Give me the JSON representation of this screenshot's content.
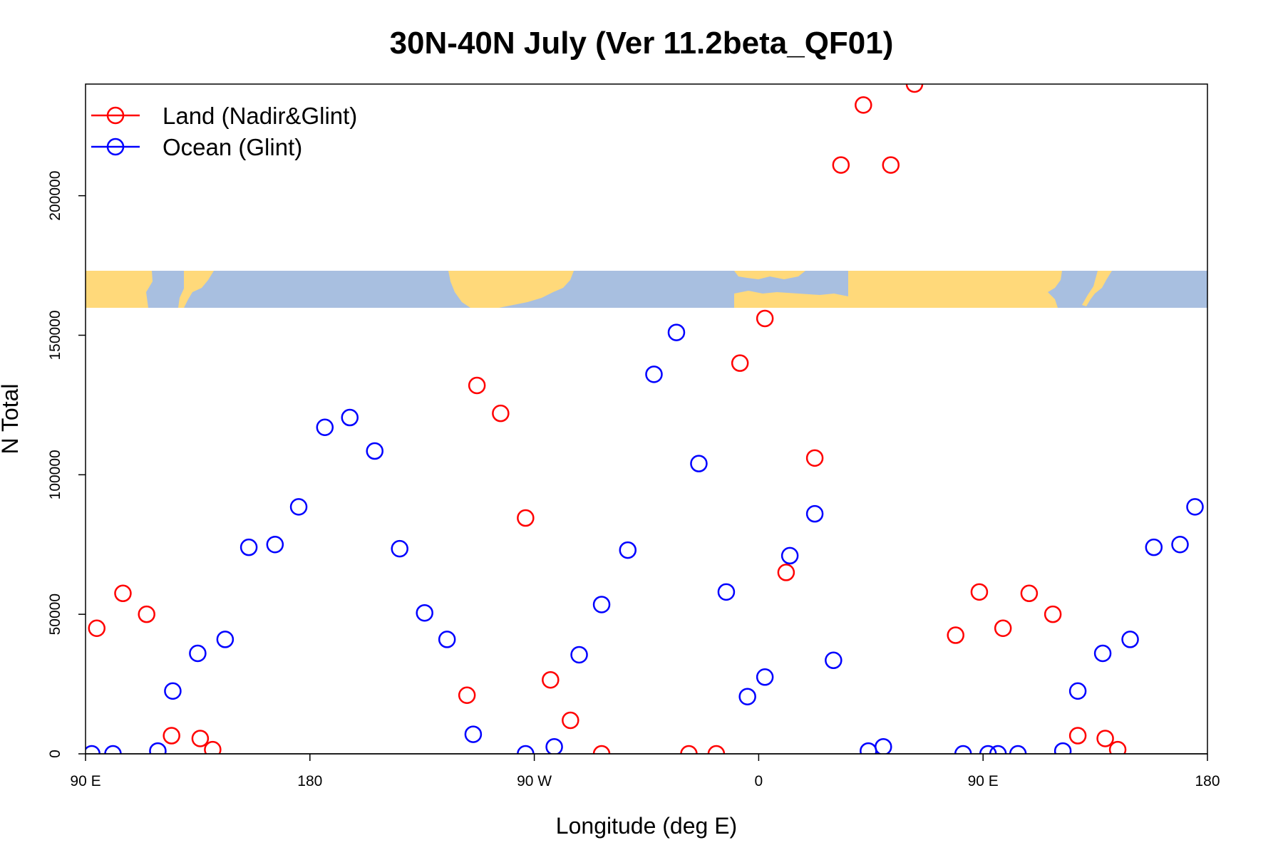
{
  "chart_data": {
    "type": "scatter",
    "title": "30N-40N July (Ver 11.2beta_QF01)",
    "xlabel": "Longitude (deg E)",
    "ylabel": "N Total",
    "xlim": [
      90,
      540
    ],
    "ylim": [
      0,
      240000
    ],
    "x_ticks": [
      {
        "value": 90,
        "label": "90 E"
      },
      {
        "value": 180,
        "label": "180"
      },
      {
        "value": 270,
        "label": "90 W"
      },
      {
        "value": 360,
        "label": "0"
      },
      {
        "value": 450,
        "label": "90 E"
      },
      {
        "value": 540,
        "label": "180"
      }
    ],
    "y_ticks": [
      {
        "value": 0,
        "label": "0"
      },
      {
        "value": 50000,
        "label": "50000"
      },
      {
        "value": 100000,
        "label": "100000"
      },
      {
        "value": 150000,
        "label": "150000"
      },
      {
        "value": 200000,
        "label": "200000"
      }
    ],
    "legend": {
      "position": "top-left"
    },
    "series": [
      {
        "name": "Land (Nadir&Glint)",
        "color": "#ff0000",
        "points": [
          [
            94.5,
            45000
          ],
          [
            105,
            57500
          ],
          [
            114.5,
            50000
          ],
          [
            124.5,
            6500
          ],
          [
            136,
            5500
          ],
          [
            141,
            1500
          ],
          [
            243,
            21000
          ],
          [
            247,
            132000
          ],
          [
            256.5,
            122000
          ],
          [
            266.5,
            84500
          ],
          [
            276.5,
            26500
          ],
          [
            284.5,
            12000
          ],
          [
            297,
            0
          ],
          [
            332,
            0
          ],
          [
            343,
            0
          ],
          [
            352.5,
            140000
          ],
          [
            362.5,
            156000
          ],
          [
            371,
            65000
          ],
          [
            382.5,
            106000
          ],
          [
            393,
            211000
          ],
          [
            402,
            232500
          ],
          [
            413,
            211000
          ],
          [
            422.5,
            240000
          ],
          [
            439,
            42500
          ],
          [
            448.5,
            58000
          ],
          [
            458,
            45000
          ],
          [
            468.5,
            57500
          ],
          [
            478,
            50000
          ],
          [
            488,
            6500
          ],
          [
            499,
            5500
          ],
          [
            504,
            1500
          ]
        ]
      },
      {
        "name": "Ocean (Glint)",
        "color": "#0000ff",
        "points": [
          [
            92.5,
            0
          ],
          [
            101,
            0
          ],
          [
            119,
            1000
          ],
          [
            125,
            22500
          ],
          [
            135,
            36000
          ],
          [
            146,
            41000
          ],
          [
            155.5,
            74000
          ],
          [
            166,
            75000
          ],
          [
            175.5,
            88500
          ],
          [
            186,
            117000
          ],
          [
            196,
            120500
          ],
          [
            206,
            108500
          ],
          [
            216,
            73500
          ],
          [
            226,
            50500
          ],
          [
            235,
            41000
          ],
          [
            245.5,
            7000
          ],
          [
            266.5,
            0
          ],
          [
            278,
            2500
          ],
          [
            288,
            35500
          ],
          [
            297,
            53500
          ],
          [
            307.5,
            73000
          ],
          [
            318,
            136000
          ],
          [
            327,
            151000
          ],
          [
            336,
            104000
          ],
          [
            347,
            58000
          ],
          [
            355.5,
            20500
          ],
          [
            362.5,
            27500
          ],
          [
            372.5,
            71000
          ],
          [
            382.5,
            86000
          ],
          [
            390,
            33500
          ],
          [
            404,
            1000
          ],
          [
            410,
            2500
          ],
          [
            442,
            0
          ],
          [
            452,
            0
          ],
          [
            456,
            0
          ],
          [
            464,
            0
          ],
          [
            482,
            1000
          ],
          [
            488,
            22500
          ],
          [
            498,
            36000
          ],
          [
            509,
            41000
          ],
          [
            518.5,
            74000
          ],
          [
            529,
            75000
          ],
          [
            535,
            88500
          ]
        ]
      }
    ],
    "map_strip": {
      "description_free": true,
      "ocean_color": "#a8bfe0",
      "land_color": "#ffd97a"
    }
  }
}
